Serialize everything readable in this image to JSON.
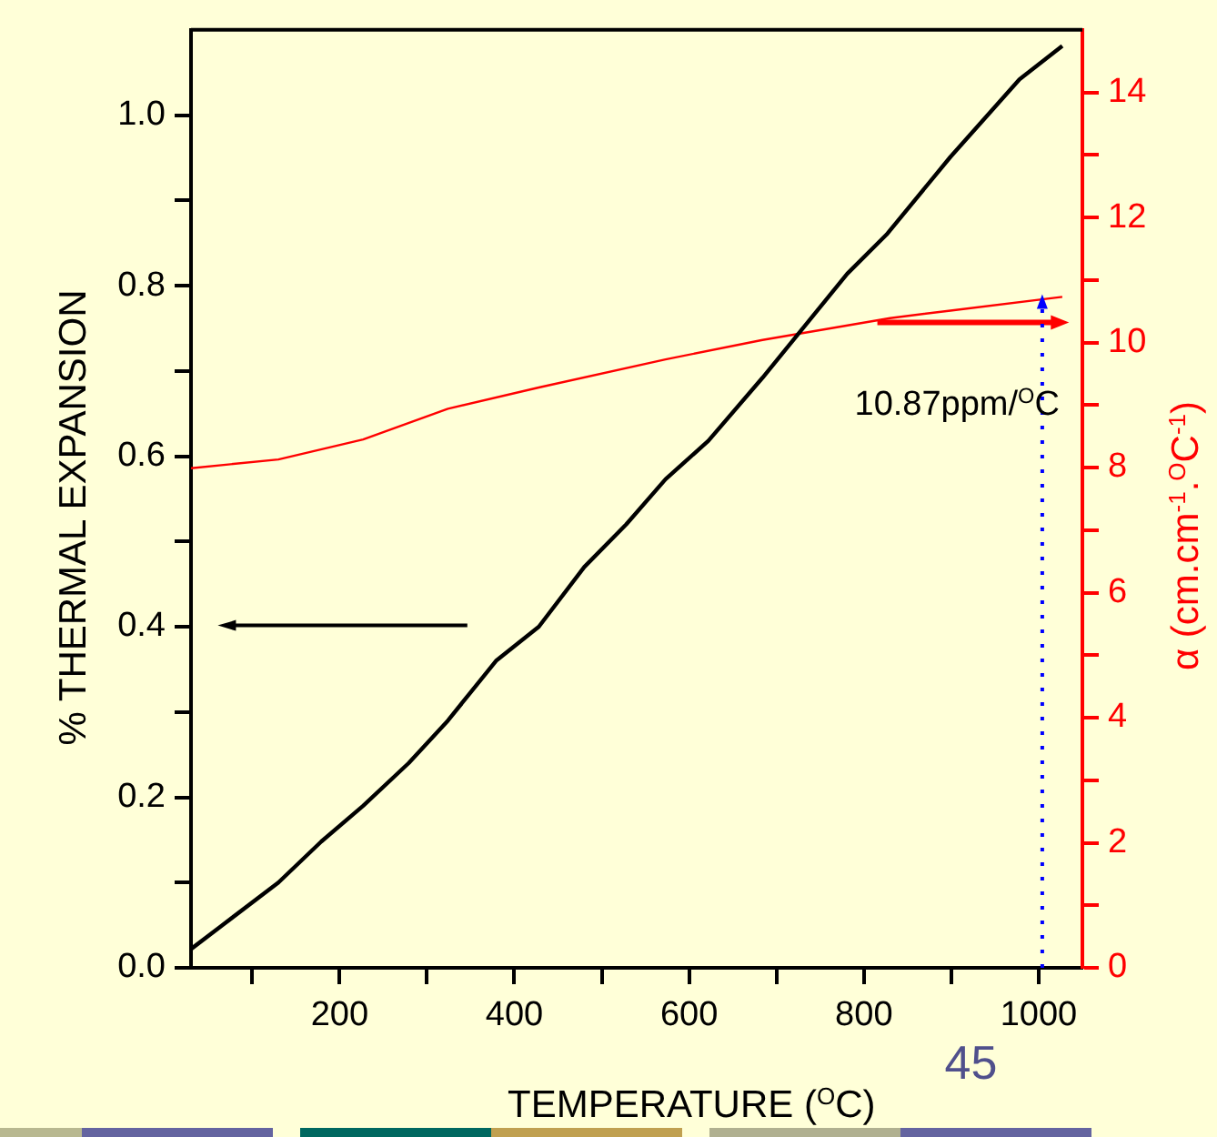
{
  "chart_data": {
    "type": "line",
    "xlabel": "TEMPERATURE ($^{O}$C)",
    "ylabel": "% THERMAL EXPANSION",
    "y2label": "α (cm.cm$^{-1}$.$^{O}$C$^{-1}$)",
    "xlim": [
      30,
      1050
    ],
    "xticks": [
      {
        "value": 100,
        "label": null
      },
      200,
      {
        "value": 300,
        "label": null
      },
      400,
      {
        "value": 500,
        "label": null
      },
      600,
      {
        "value": 700,
        "label": null
      },
      800,
      {
        "value": 900,
        "label": null
      },
      1000
    ],
    "ylim": [
      0,
      1.1
    ],
    "yticks": [
      {
        "value": 0,
        "label": "0.0"
      },
      {
        "value": 0.1,
        "label": null
      },
      {
        "value": 0.2,
        "label": "0.2"
      },
      {
        "value": 0.3,
        "label": null
      },
      {
        "value": 0.4,
        "label": "0.4"
      },
      {
        "value": 0.5,
        "label": null
      },
      {
        "value": 0.6,
        "label": "0.6"
      },
      {
        "value": 0.7,
        "label": null
      },
      {
        "value": 0.8,
        "label": "0.8"
      },
      {
        "value": 0.9,
        "label": null
      },
      {
        "value": 1.0,
        "label": "1.0"
      }
    ],
    "y2lim": [
      0,
      15
    ],
    "y2ticks": [
      0,
      {
        "value": 1,
        "label": null
      },
      2,
      {
        "value": 3,
        "label": null
      },
      4,
      {
        "value": 5,
        "label": null
      },
      6,
      {
        "value": 7,
        "label": null
      },
      8,
      {
        "value": 9,
        "label": null
      },
      10,
      {
        "value": 11,
        "label": null
      },
      12,
      {
        "value": 13,
        "label": null
      },
      14
    ],
    "series": [
      {
        "color": "#000000",
        "x": [
          30,
          130,
          179,
          227,
          279,
          324,
          379,
          428,
          480,
          528,
          573,
          622,
          684,
          781,
          826,
          899,
          978,
          1027
        ],
        "values": [
          0.022,
          0.1,
          0.148,
          0.19,
          0.24,
          0.29,
          0.36,
          0.4,
          0.47,
          0.52,
          0.573,
          0.618,
          0.692,
          0.814,
          0.86,
          0.951,
          1.042,
          1.081
        ]
      },
      {
        "color": "#ff0000",
        "axis": "y2",
        "x": [
          30,
          130,
          227,
          324,
          428,
          573,
          684,
          830,
          899,
          1027
        ],
        "values": [
          7.99,
          8.13,
          8.45,
          8.94,
          9.28,
          9.73,
          10.04,
          10.39,
          10.51,
          10.73
        ]
      }
    ],
    "annotations": [
      "10.87ppm/$^{O}$C",
      "45"
    ],
    "grid": false,
    "legend": false
  }
}
